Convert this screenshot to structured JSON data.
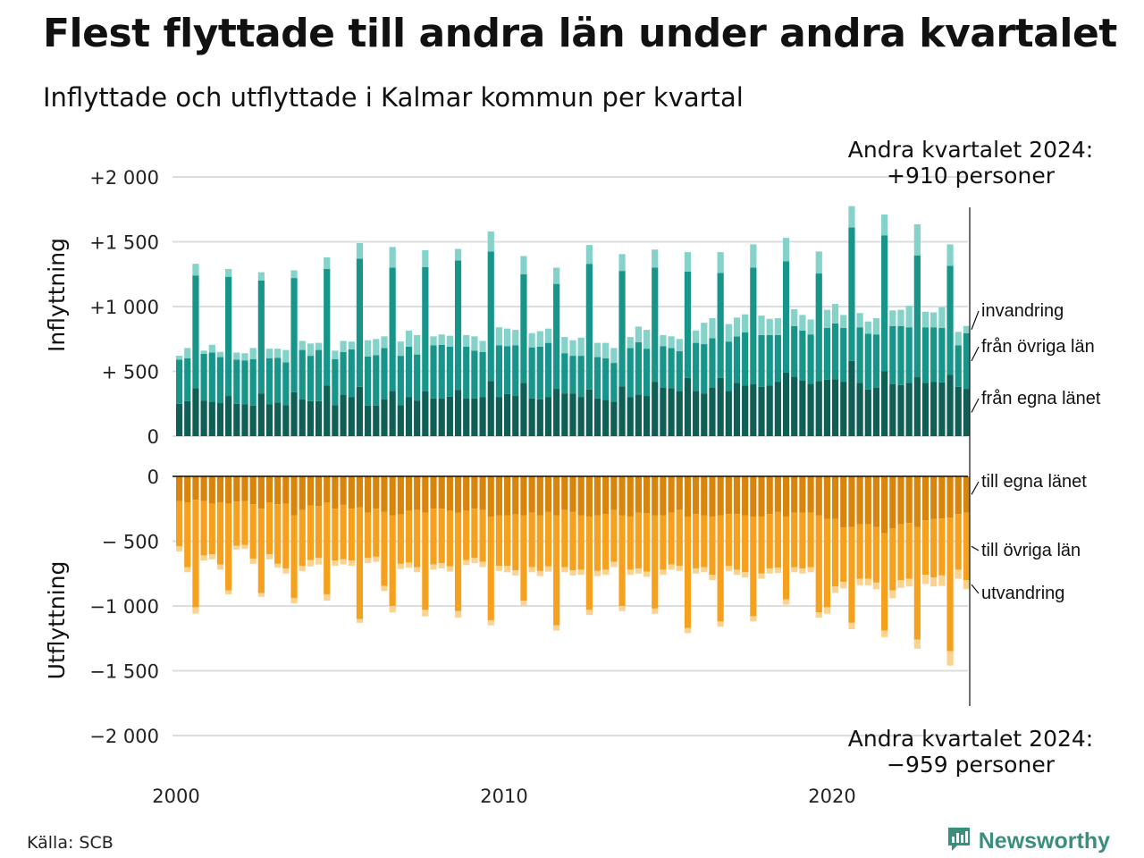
{
  "title": "Flest flyttade till andra län under andra kvartalet",
  "subtitle": "Inflyttade och utflyttade i Kalmar kommun per kvartal",
  "source": "Källa: SCB",
  "brand": "Newsworthy",
  "annotation_top": [
    "Andra kvartalet 2024:",
    "+910 personer"
  ],
  "annotation_bottom": [
    "Andra kvartalet 2024:",
    "−959 personer"
  ],
  "colors": {
    "in_egna": "#0f5f57",
    "in_ovriga": "#17958a",
    "in_invandring": "#84d2c9",
    "out_egna": "#d7850c",
    "out_ovriga": "#f6a11e",
    "out_utvandring": "#fbd390",
    "grid": "#dddddd",
    "brand": "#3a8f7c"
  },
  "chart_data": {
    "type": "bar",
    "stacked": true,
    "x_start": "2000 Q1",
    "x_ticks": [
      {
        "value": 2000,
        "label": "2000"
      },
      {
        "value": 2010,
        "label": "2010"
      },
      {
        "value": 2020,
        "label": "2020"
      }
    ],
    "panels": [
      {
        "id": "inflyttning",
        "ylabel": "Inflyttning",
        "ylim": [
          0,
          2000
        ],
        "yticks": [
          {
            "value": 0,
            "label": "0"
          },
          {
            "value": 500,
            "label": "+  500"
          },
          {
            "value": 1000,
            "label": "+1 000"
          },
          {
            "value": 1500,
            "label": "+1 500"
          },
          {
            "value": 2000,
            "label": "+2 000"
          }
        ],
        "series": [
          {
            "name": "från egna länet",
            "values": [
              250,
              270,
              370,
              275,
              265,
              255,
              310,
              250,
              245,
              235,
              330,
              245,
              260,
              240,
              340,
              285,
              270,
              270,
              390,
              240,
              320,
              300,
              380,
              235,
              235,
              285,
              350,
              240,
              300,
              275,
              345,
              290,
              290,
              305,
              355,
              290,
              290,
              300,
              425,
              300,
              325,
              310,
              410,
              290,
              285,
              300,
              365,
              330,
              330,
              300,
              360,
              290,
              280,
              265,
              385,
              300,
              320,
              310,
              420,
              375,
              370,
              350,
              450,
              350,
              330,
              375,
              450,
              350,
              410,
              390,
              400,
              380,
              390,
              420,
              490,
              460,
              430,
              405,
              425,
              435,
              440,
              420,
              580,
              410,
              360,
              375,
              500,
              400,
              395,
              410,
              455,
              410,
              420,
              415,
              475,
              380,
              365
            ]
          },
          {
            "name": "från övriga län",
            "values": [
              340,
              330,
              870,
              360,
              380,
              355,
              920,
              340,
              340,
              360,
              870,
              355,
              345,
              330,
              880,
              380,
              350,
              395,
              900,
              355,
              330,
              370,
              990,
              380,
              390,
              395,
              950,
              380,
              390,
              355,
              960,
              410,
              415,
              385,
              1000,
              400,
              370,
              350,
              1000,
              400,
              370,
              390,
              840,
              395,
              405,
              420,
              810,
              310,
              290,
              320,
              970,
              320,
              320,
              300,
              890,
              380,
              405,
              365,
              880,
              320,
              310,
              305,
              820,
              370,
              380,
              380,
              810,
              380,
              360,
              410,
              900,
              400,
              390,
              360,
              860,
              390,
              385,
              380,
              830,
              400,
              430,
              415,
              1030,
              430,
              430,
              410,
              1050,
              450,
              455,
              430,
              940,
              430,
              420,
              420,
              840,
              320,
              430
            ]
          },
          {
            "name": "invandring",
            "values": [
              30,
              80,
              90,
              25,
              60,
              40,
              60,
              55,
              55,
              85,
              65,
              75,
              70,
              95,
              60,
              70,
              95,
              55,
              90,
              65,
              85,
              60,
              120,
              125,
              125,
              90,
              160,
              110,
              125,
              150,
              130,
              70,
              80,
              85,
              90,
              90,
              110,
              85,
              155,
              140,
              135,
              120,
              140,
              110,
              120,
              110,
              125,
              125,
              120,
              140,
              145,
              110,
              120,
              115,
              130,
              85,
              120,
              145,
              140,
              85,
              90,
              95,
              150,
              95,
              165,
              155,
              160,
              135,
              145,
              140,
              180,
              150,
              125,
              130,
              180,
              130,
              120,
              115,
              170,
              140,
              150,
              100,
              165,
              110,
              95,
              125,
              160,
              120,
              125,
              165,
              240,
              120,
              115,
              160,
              165,
              105,
              55
            ]
          }
        ]
      },
      {
        "id": "utflyttning",
        "ylabel": "Utflyttning",
        "ylim": [
          -2000,
          0
        ],
        "yticks": [
          {
            "value": 0,
            "label": "0"
          },
          {
            "value": -500,
            "label": "−  500"
          },
          {
            "value": -1000,
            "label": "−1 000"
          },
          {
            "value": -1500,
            "label": "−1 500"
          },
          {
            "value": -2000,
            "label": "−2 000"
          }
        ],
        "series": [
          {
            "name": "till egna länet",
            "values": [
              -190,
              -200,
              -180,
              -190,
              -210,
              -200,
              -210,
              -195,
              -190,
              -215,
              -250,
              -200,
              -215,
              -210,
              -300,
              -260,
              -225,
              -230,
              -200,
              -250,
              -220,
              -250,
              -240,
              -280,
              -250,
              -275,
              -300,
              -295,
              -265,
              -260,
              -280,
              -250,
              -250,
              -265,
              -280,
              -265,
              -250,
              -260,
              -310,
              -300,
              -300,
              -295,
              -300,
              -280,
              -300,
              -275,
              -300,
              -260,
              -275,
              -300,
              -310,
              -300,
              -290,
              -260,
              -300,
              -310,
              -280,
              -285,
              -300,
              -300,
              -280,
              -260,
              -310,
              -290,
              -300,
              -310,
              -300,
              -290,
              -290,
              -300,
              -310,
              -310,
              -290,
              -275,
              -310,
              -280,
              -280,
              -280,
              -300,
              -330,
              -330,
              -395,
              -390,
              -370,
              -370,
              -390,
              -440,
              -400,
              -370,
              -360,
              -390,
              -340,
              -330,
              -325,
              -320,
              -290,
              -280
            ]
          },
          {
            "name": "till övriga län",
            "values": [
              -350,
              -500,
              -830,
              -420,
              -390,
              -480,
              -670,
              -340,
              -340,
              -420,
              -650,
              -400,
              -460,
              -500,
              -640,
              -430,
              -420,
              -400,
              -710,
              -400,
              -420,
              -400,
              -860,
              -350,
              -370,
              -570,
              -700,
              -380,
              -400,
              -440,
              -750,
              -430,
              -420,
              -430,
              -760,
              -380,
              -380,
              -400,
              -800,
              -390,
              -390,
              -430,
              -660,
              -420,
              -430,
              -420,
              -850,
              -440,
              -450,
              -420,
              -720,
              -430,
              -430,
              -400,
              -700,
              -410,
              -430,
              -450,
              -720,
              -420,
              -400,
              -430,
              -860,
              -420,
              -400,
              -450,
              -820,
              -400,
              -430,
              -440,
              -770,
              -440,
              -420,
              -430,
              -640,
              -420,
              -430,
              -420,
              -750,
              -680,
              -520,
              -420,
              -740,
              -420,
              -420,
              -430,
              -750,
              -480,
              -430,
              -430,
              -870,
              -420,
              -450,
              -440,
              -1030,
              -430,
              -520
            ]
          },
          {
            "name": "utvandring",
            "values": [
              -40,
              -40,
              -50,
              -40,
              -40,
              -40,
              -30,
              -30,
              -30,
              -40,
              -30,
              -40,
              -30,
              -40,
              -40,
              -40,
              -50,
              -50,
              -50,
              -40,
              -40,
              -40,
              -30,
              -40,
              -40,
              -40,
              -50,
              -40,
              -40,
              -40,
              -50,
              -40,
              -40,
              -40,
              -50,
              -40,
              -40,
              -40,
              -40,
              -40,
              -50,
              -40,
              -40,
              -40,
              -40,
              -40,
              -40,
              -40,
              -40,
              -40,
              -40,
              -40,
              -40,
              -40,
              -40,
              -40,
              -40,
              -40,
              -40,
              -40,
              -40,
              -40,
              -40,
              -40,
              -40,
              -40,
              -40,
              -40,
              -40,
              -40,
              -40,
              -40,
              -40,
              -40,
              -40,
              -40,
              -40,
              -40,
              -40,
              -50,
              -50,
              -50,
              -50,
              -50,
              -50,
              -50,
              -50,
              -60,
              -60,
              -60,
              -70,
              -70,
              -70,
              -80,
              -110,
              -70,
              -70
            ]
          }
        ]
      }
    ]
  }
}
